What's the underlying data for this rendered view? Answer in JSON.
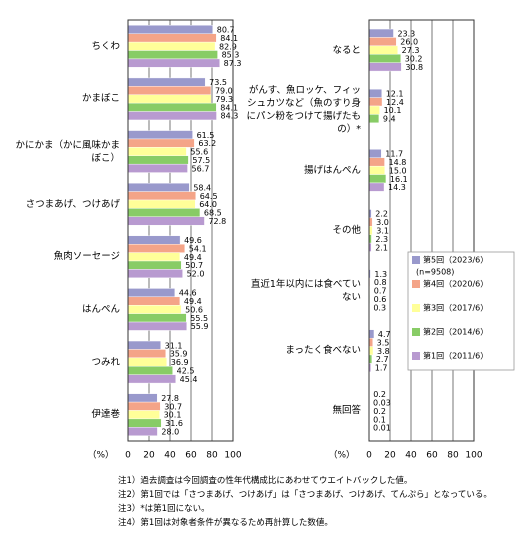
{
  "chart_data": [
    {
      "type": "bar",
      "orientation": "horizontal",
      "categories": [
        "ちくわ",
        "かまぼこ",
        "かにかま（かに風味かまぼこ）",
        "さつまあげ、つけあげ",
        "魚肉ソーセージ",
        "はんぺん",
        "つみれ",
        "伊達巻"
      ],
      "series": [
        {
          "color": "#9999cc",
          "values": [
            80.7,
            73.5,
            61.5,
            58.4,
            49.6,
            44.6,
            31.1,
            27.8
          ],
          "value_labels": [
            "80.7",
            "73.5",
            "61.5",
            "58.4",
            "49.6",
            "44.6",
            "31.1",
            "27.8"
          ]
        },
        {
          "color": "#f4a488",
          "values": [
            84.1,
            79.0,
            63.2,
            64.5,
            54.1,
            49.4,
            35.9,
            30.7
          ],
          "value_labels": [
            "84.1",
            "79.0",
            "63.2",
            "64.5",
            "54.1",
            "49.4",
            "35.9",
            "30.7"
          ]
        },
        {
          "color": "#ffff99",
          "values": [
            82.9,
            79.3,
            55.6,
            64.0,
            49.4,
            50.6,
            36.9,
            30.1
          ],
          "value_labels": [
            "82.9",
            "79.3",
            "55.6",
            "64.0",
            "49.4",
            "50.6",
            "36.9",
            "30.1"
          ]
        },
        {
          "color": "#88cc66",
          "values": [
            85.3,
            84.1,
            57.5,
            68.5,
            50.7,
            55.5,
            42.5,
            31.6
          ],
          "value_labels": [
            "85.3",
            "84.1",
            "57.5",
            "68.5",
            "50.7",
            "55.5",
            "42.5",
            "31.6"
          ]
        },
        {
          "color": "#b89ad0",
          "values": [
            87.3,
            84.3,
            56.7,
            72.8,
            52.0,
            55.9,
            45.4,
            28.0
          ],
          "value_labels": [
            "87.3",
            "84.3",
            "56.7",
            "72.8",
            "52.0",
            "55.9",
            "45.4",
            "28.0"
          ]
        }
      ],
      "xlim": [
        0,
        100
      ],
      "xticks": [
        0,
        20,
        40,
        60,
        80,
        100
      ],
      "grid": true,
      "x_label": "（%）"
    },
    {
      "type": "bar",
      "orientation": "horizontal",
      "categories": [
        "なると",
        "がんす、魚ロッケ、フィッシュカツなど（魚のすり身にパン粉をつけて揚げたもの）*",
        "揚げはんぺん",
        "その他",
        "直近1年以内には食べていない",
        "まったく食べない",
        "無回答"
      ],
      "series": [
        {
          "name": "第5回（2023/6）",
          "color": "#9999cc",
          "values": [
            23.3,
            12.1,
            11.7,
            2.2,
            1.3,
            4.7,
            0.2
          ],
          "value_labels": [
            "23.3",
            "12.1",
            "11.7",
            "2.2",
            "1.3",
            "4.7",
            "0.2"
          ]
        },
        {
          "name": "第4回（2020/6）",
          "color": "#f4a488",
          "values": [
            26.0,
            12.4,
            14.8,
            3.0,
            0.8,
            3.5,
            0.03
          ],
          "value_labels": [
            "26.0",
            "12.4",
            "14.8",
            "3.0",
            "0.8",
            "3.5",
            "0.03"
          ]
        },
        {
          "name": "第3回（2017/6）",
          "color": "#ffff99",
          "values": [
            27.3,
            10.1,
            15.0,
            3.1,
            0.7,
            3.8,
            0.2
          ],
          "value_labels": [
            "27.3",
            "10.1",
            "15.0",
            "3.1",
            "0.7",
            "3.8",
            "0.2"
          ]
        },
        {
          "name": "第2回（2014/6）",
          "color": "#88cc66",
          "values": [
            30.2,
            9.4,
            16.1,
            2.3,
            0.6,
            2.7,
            0.1
          ],
          "value_labels": [
            "30.2",
            "9.4",
            "16.1",
            "2.3",
            "0.6",
            "2.7",
            "0.1"
          ]
        },
        {
          "name": "第1回（2011/6）",
          "color": "#b89ad0",
          "values": [
            30.8,
            null,
            14.3,
            2.1,
            0.3,
            1.7,
            0.01
          ],
          "value_labels": [
            "30.8",
            null,
            "14.3",
            "2.1",
            "0.3",
            "1.7",
            "0.01"
          ]
        }
      ],
      "legend_note": "(n=9508)",
      "xlim": [
        0,
        100
      ],
      "xticks": [
        0,
        20,
        40,
        60,
        80,
        100
      ],
      "grid": true,
      "x_label": "（%）"
    }
  ],
  "notes": [
    "注1）過去調査は今回調査の性年代構成比にあわせてウエイトバックした値。",
    "注2）第1回では「さつまあげ、つけあげ」は「さつまあげ、つけあげ、てんぷら」となっている。",
    "注3）*は第1回にない。",
    "注4）第1回は対象者条件が異なるため再計算した数値。"
  ]
}
